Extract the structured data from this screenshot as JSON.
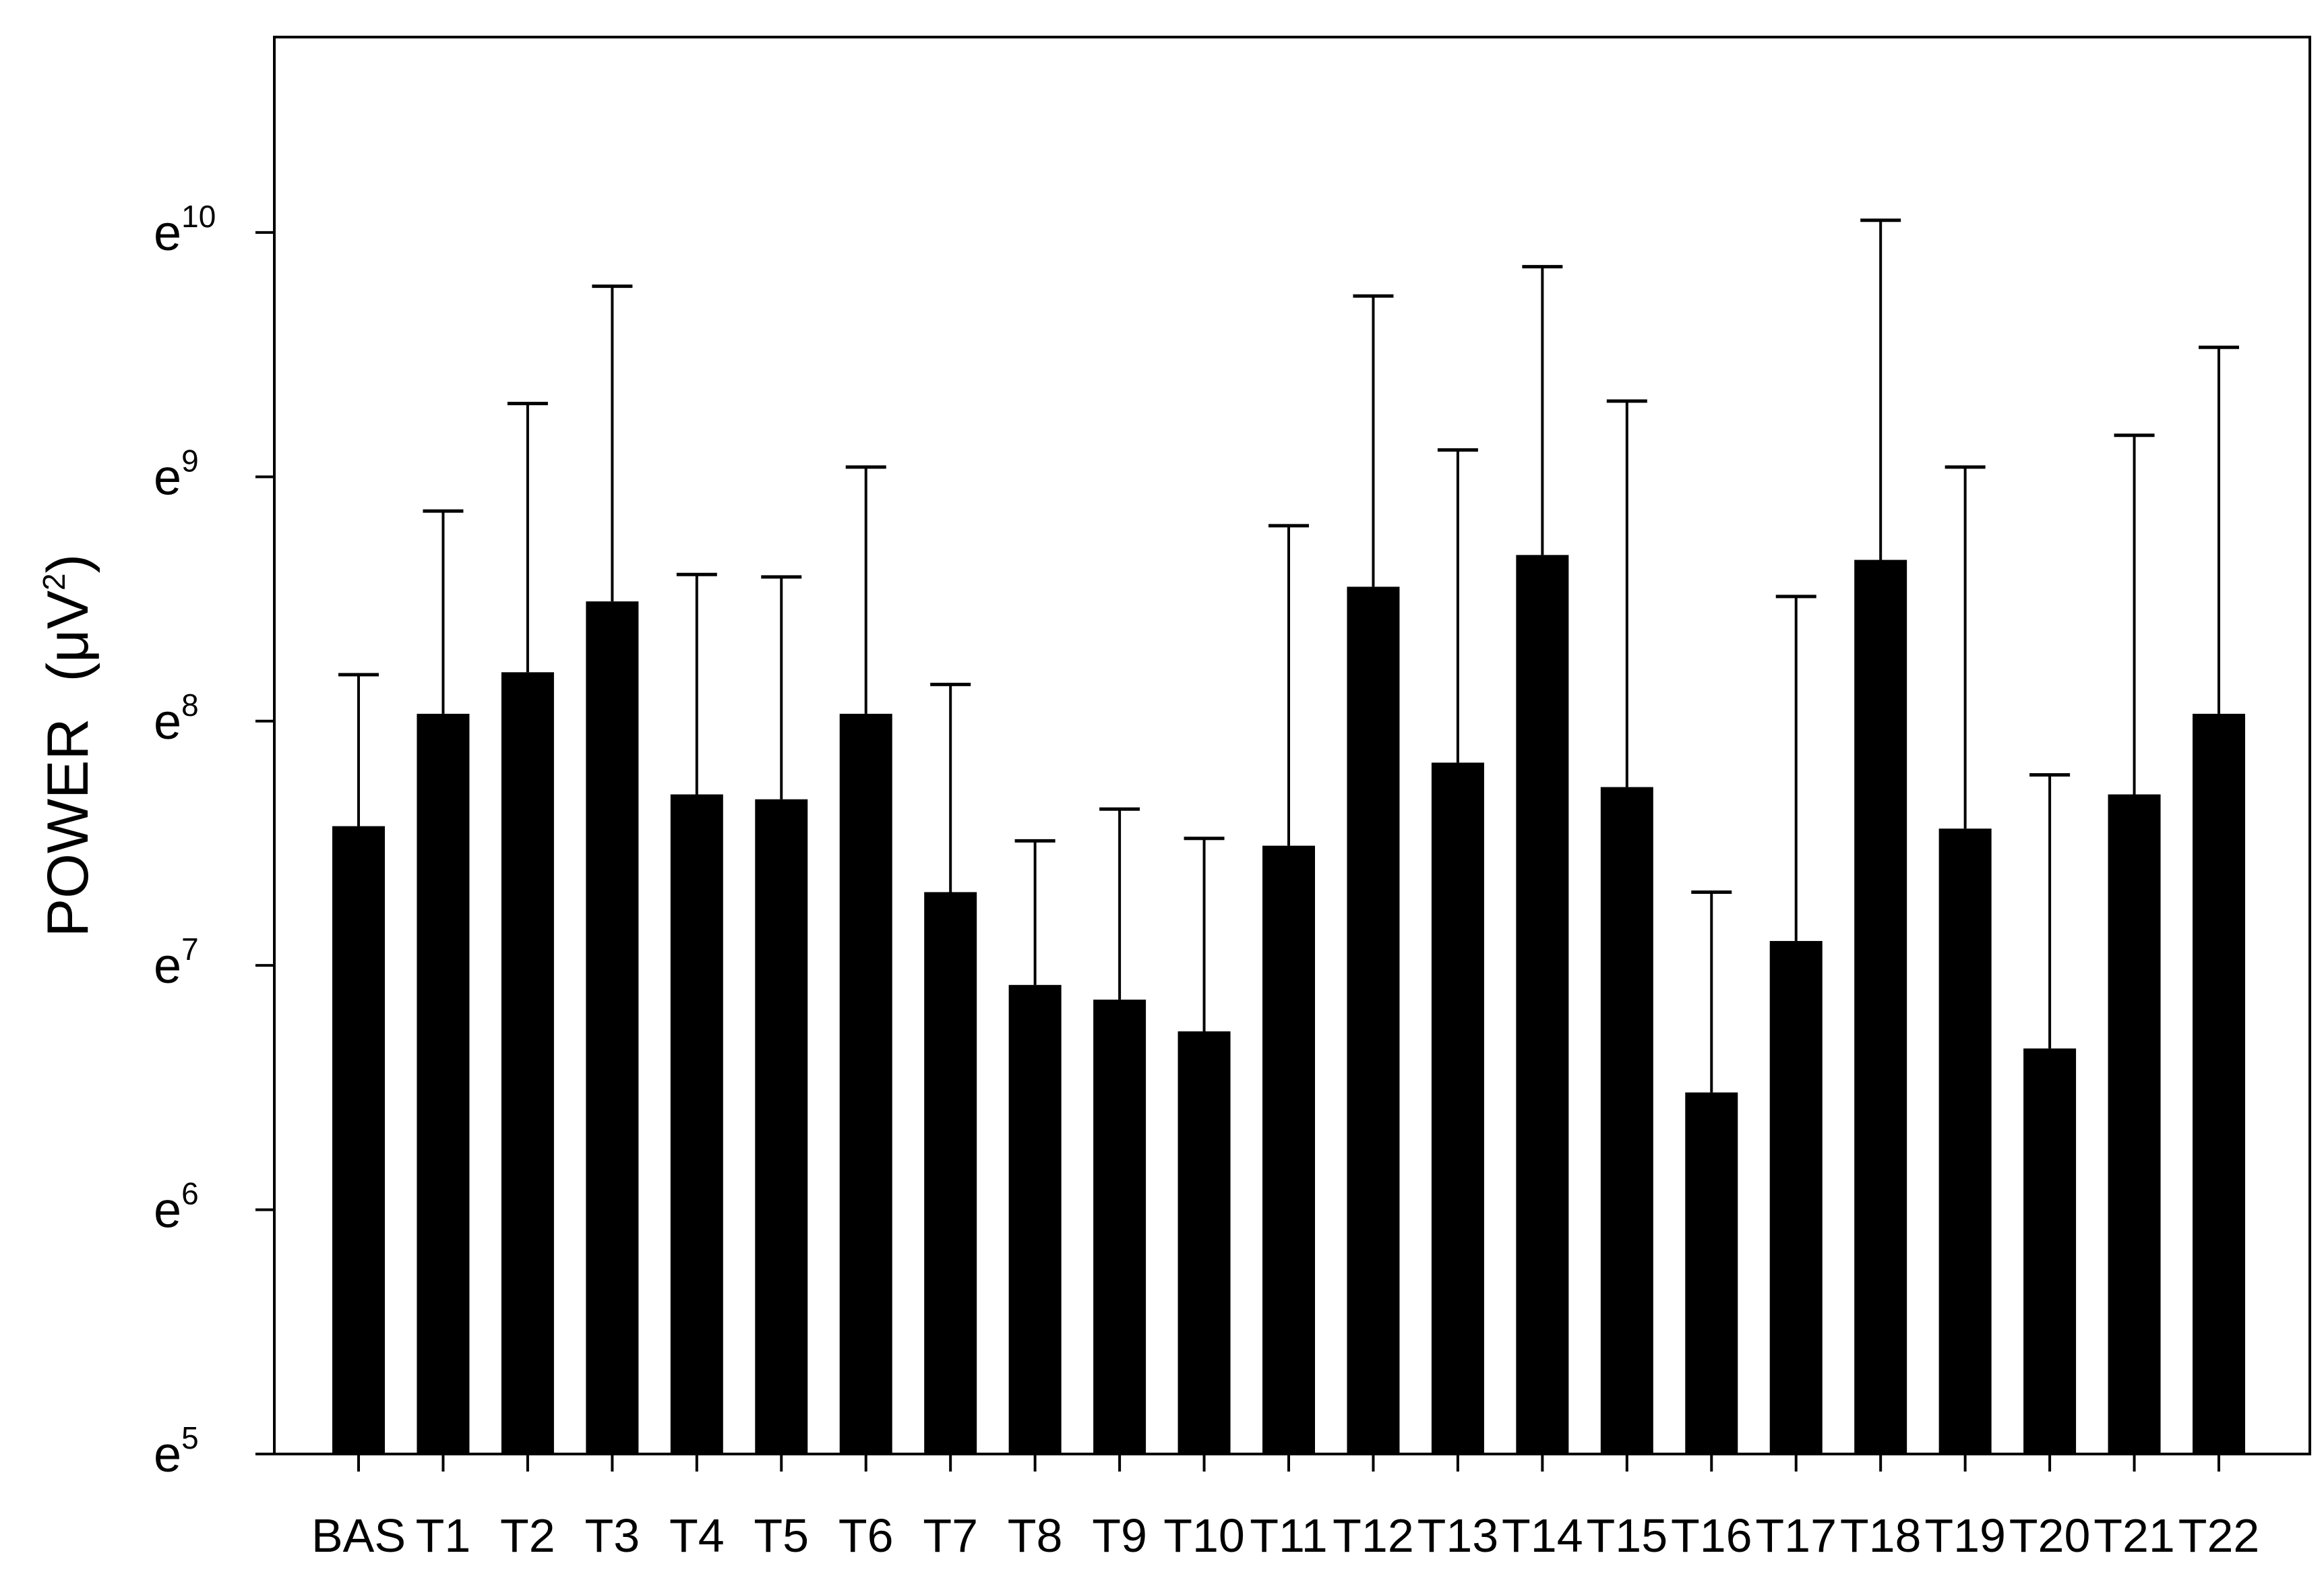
{
  "chart_data": {
    "type": "bar",
    "ylabel_main": "POWER",
    "ylabel_unit": "(μV",
    "ylabel_unit_exp": "2",
    "ylabel_unit_close": ")",
    "xlabel": "",
    "title": "",
    "y_scale": "log-e",
    "ylim": [
      5,
      10.8
    ],
    "y_ticks": [
      {
        "base": "e",
        "exp": "5",
        "value": 5
      },
      {
        "base": "e",
        "exp": "6",
        "value": 6
      },
      {
        "base": "e",
        "exp": "7",
        "value": 7
      },
      {
        "base": "e",
        "exp": "8",
        "value": 8
      },
      {
        "base": "e",
        "exp": "9",
        "value": 9
      },
      {
        "base": "e",
        "exp": "10",
        "value": 10
      }
    ],
    "categories": [
      "BAS",
      "T1",
      "T2",
      "T3",
      "T4",
      "T5",
      "T6",
      "T7",
      "T8",
      "T9",
      "T10",
      "T11",
      "T12",
      "T13",
      "T14",
      "T15",
      "T16",
      "T17",
      "T18",
      "T19",
      "T20",
      "T21",
      "T22"
    ],
    "values_ln": [
      7.57,
      8.03,
      8.2,
      8.49,
      7.7,
      7.68,
      8.03,
      7.3,
      6.92,
      6.86,
      6.73,
      7.49,
      8.55,
      7.83,
      8.68,
      7.73,
      6.48,
      7.1,
      8.66,
      7.56,
      6.66,
      7.7,
      8.03
    ],
    "error_upper_ln": [
      8.19,
      8.86,
      9.3,
      9.78,
      8.6,
      8.59,
      9.04,
      8.15,
      7.51,
      7.64,
      7.52,
      8.8,
      9.74,
      9.11,
      9.86,
      9.31,
      7.3,
      8.51,
      10.05,
      9.04,
      7.78,
      9.17,
      9.53
    ],
    "grid": false,
    "legend": "none",
    "bar_color": "#000000",
    "error_color": "#000000"
  }
}
